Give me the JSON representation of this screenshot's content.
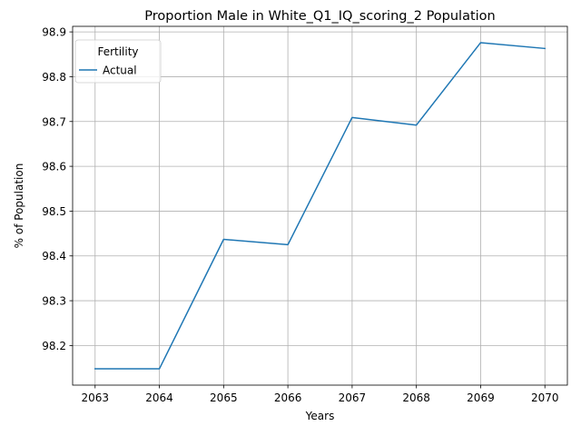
{
  "chart_data": {
    "type": "line",
    "title": "Proportion Male in White_Q1_IQ_scoring_2 Population",
    "xlabel": "Years",
    "ylabel": "% of Population",
    "x": [
      2063,
      2064,
      2065,
      2066,
      2067,
      2068,
      2069,
      2070
    ],
    "series": [
      {
        "name": "Actual",
        "color": "#1f77b4",
        "values": [
          98.148,
          98.148,
          98.437,
          98.425,
          98.709,
          98.692,
          98.876,
          98.863
        ]
      }
    ],
    "xticks": [
      "2063",
      "2064",
      "2065",
      "2066",
      "2067",
      "2068",
      "2069",
      "2070"
    ],
    "yticks": [
      "98.2",
      "98.3",
      "98.4",
      "98.5",
      "98.6",
      "98.7",
      "98.8",
      "98.9"
    ],
    "xlim": [
      2062.65,
      2070.35
    ],
    "ylim": [
      98.1116,
      98.9124
    ],
    "grid": true,
    "legend": {
      "title": "Fertility",
      "placement": "top-left"
    }
  }
}
